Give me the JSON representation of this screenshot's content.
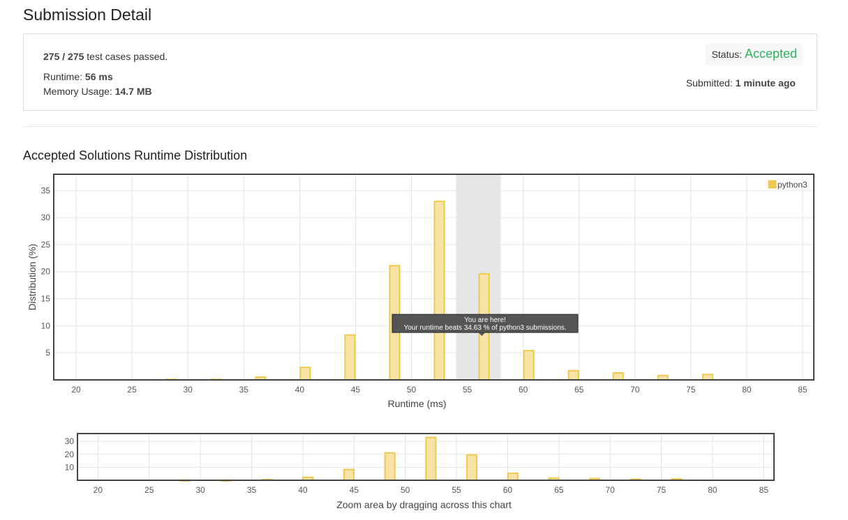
{
  "header": {
    "title": "Submission Detail"
  },
  "detail": {
    "cases_passed": "275 / 275",
    "cases_suffix": "test cases passed.",
    "runtime_label": "Runtime:",
    "runtime_value": "56 ms",
    "memory_label": "Memory Usage:",
    "memory_value": "14.7 MB",
    "status_label": "Status:",
    "status_value": "Accepted",
    "submitted_label": "Submitted:",
    "submitted_value": "1 minute ago"
  },
  "section": {
    "title": "Accepted Solutions Runtime Distribution"
  },
  "colors": {
    "bar_fill": "#f7e3a6",
    "bar_stroke": "#efc84e",
    "accent": "#2db55d",
    "highlight": "#e6e6e6",
    "tooltip_bg": "#555555"
  },
  "chart_data": [
    {
      "type": "bar",
      "xlabel": "Runtime (ms)",
      "ylabel": "Distribution (%)",
      "xlim": [
        18,
        86
      ],
      "ylim": [
        0,
        38
      ],
      "xticks": [
        20,
        25,
        30,
        35,
        40,
        45,
        50,
        55,
        60,
        65,
        70,
        75,
        80,
        85
      ],
      "yticks": [
        5,
        10,
        15,
        20,
        25,
        30,
        35
      ],
      "grid": true,
      "legend": {
        "position": "top-right",
        "entries": [
          "python3"
        ]
      },
      "series": [
        {
          "name": "python3",
          "x": [
            28.5,
            32.5,
            36.5,
            40.5,
            44.5,
            48.5,
            52.5,
            56.5,
            60.5,
            64.5,
            68.5,
            72.5,
            76.5
          ],
          "values": [
            0.1,
            0.1,
            0.5,
            2.3,
            8.3,
            21.1,
            33.0,
            19.6,
            5.4,
            1.7,
            1.3,
            0.8,
            1.0
          ]
        }
      ],
      "highlight_range": [
        54,
        58
      ],
      "tooltip": {
        "line1": "You are here!",
        "line2": "Your runtime beats 34.63 % of python3 submissions."
      }
    },
    {
      "type": "bar",
      "xlim": [
        18,
        86
      ],
      "ylim": [
        0,
        36
      ],
      "xticks": [
        20,
        25,
        30,
        35,
        40,
        45,
        50,
        55,
        60,
        65,
        70,
        75,
        80,
        85
      ],
      "yticks": [
        10,
        20,
        30
      ],
      "grid": true,
      "caption": "Zoom area by dragging across this chart"
    }
  ]
}
